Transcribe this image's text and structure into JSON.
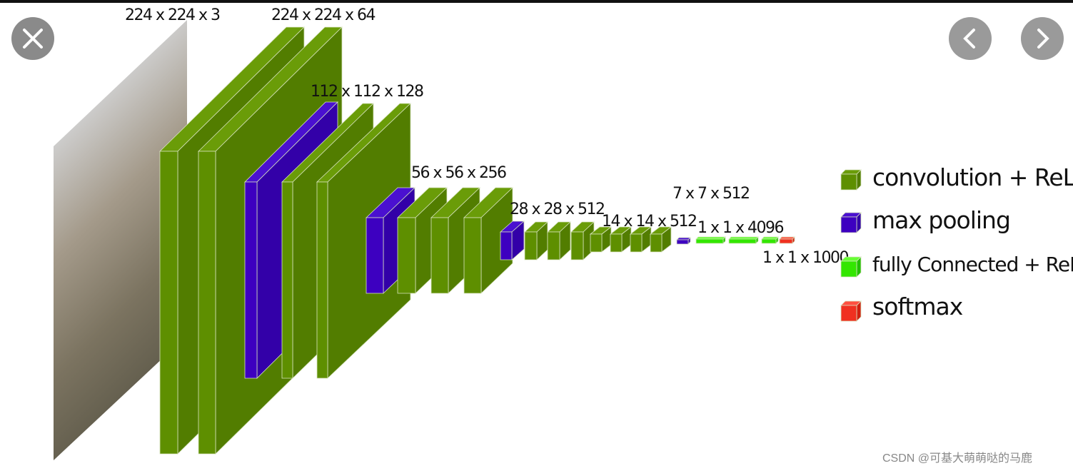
{
  "layer_labels": [
    "224 x 224 x 3",
    "224 x 224 x 64",
    "112 x 112 x 128",
    "56 x 56 x 256",
    "28 x 28 x 512",
    "14 x 14 x 512",
    "7 x 7 x 512",
    "1 x 1 x 4096",
    "1 x 1 x 1000"
  ],
  "legend": [
    "convolution + ReLU",
    "max pooling",
    "fully Connected + ReLU",
    "softmax"
  ],
  "watermark": "CSDN @可基大萌萌哒的马鹿"
}
